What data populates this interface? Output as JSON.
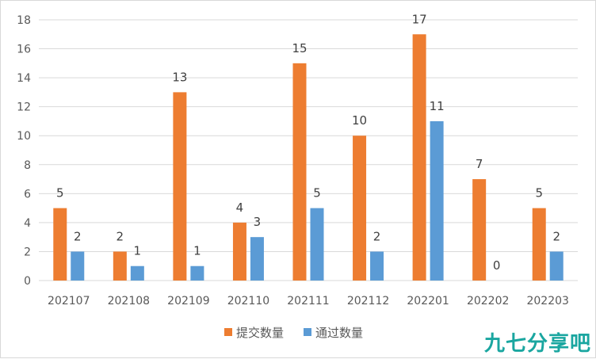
{
  "chart_data": {
    "type": "bar",
    "categories": [
      "202107",
      "202108",
      "202109",
      "202110",
      "202111",
      "202112",
      "202201",
      "202202",
      "202203"
    ],
    "series": [
      {
        "name": "提交数量",
        "color": "#ed7d31",
        "values": [
          5,
          2,
          13,
          4,
          15,
          10,
          17,
          7,
          5
        ]
      },
      {
        "name": "通过数量",
        "color": "#5b9bd5",
        "values": [
          2,
          1,
          1,
          3,
          5,
          2,
          11,
          0,
          2
        ]
      }
    ],
    "ylim": [
      0,
      18
    ],
    "yticks": [
      "0",
      "2",
      "4",
      "6",
      "8",
      "10",
      "12",
      "14",
      "16",
      "18"
    ],
    "grid": true,
    "legend_position": "bottom"
  },
  "watermark": "九七分享吧"
}
